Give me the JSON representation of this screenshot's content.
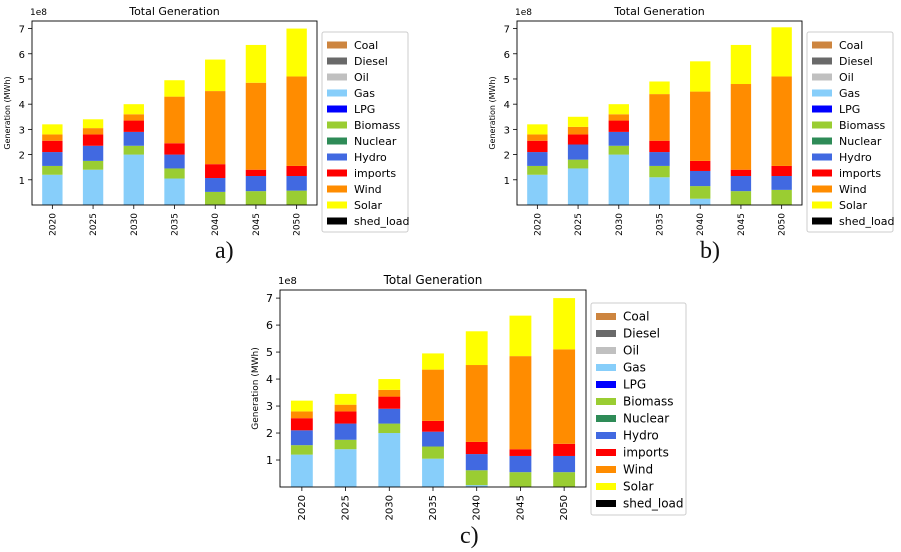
{
  "captions": [
    "a)",
    "b)",
    "c)"
  ],
  "legend": {
    "items": [
      {
        "label": "Coal",
        "color": "#cd853f"
      },
      {
        "label": "Diesel",
        "color": "#696969"
      },
      {
        "label": "Oil",
        "color": "#c0c0c0"
      },
      {
        "label": "Gas",
        "color": "#87cefa"
      },
      {
        "label": "LPG",
        "color": "#0000ff"
      },
      {
        "label": "Biomass",
        "color": "#9acd32"
      },
      {
        "label": "Nuclear",
        "color": "#2e8b57"
      },
      {
        "label": "Hydro",
        "color": "#4169e1"
      },
      {
        "label": "imports",
        "color": "#ff0000"
      },
      {
        "label": "Wind",
        "color": "#ff8c00"
      },
      {
        "label": "Solar",
        "color": "#ffff00"
      },
      {
        "label": "shed_load",
        "color": "#000000"
      }
    ]
  },
  "chart_data": [
    {
      "type": "bar",
      "stacked": true,
      "title": "Total Generation",
      "ylabel": "Generation (MWh)",
      "scale_label": "1e8",
      "categories": [
        "2020",
        "2025",
        "2030",
        "2035",
        "2040",
        "2045",
        "2050"
      ],
      "ylim": [
        0,
        7.3
      ],
      "yticks": [
        1,
        2,
        3,
        4,
        5,
        6,
        7
      ],
      "legend_position": "right",
      "series": [
        {
          "name": "Coal",
          "values": [
            0,
            0,
            0,
            0,
            0,
            0,
            0
          ]
        },
        {
          "name": "Diesel",
          "values": [
            0,
            0,
            0,
            0,
            0,
            0,
            0
          ]
        },
        {
          "name": "Oil",
          "values": [
            0,
            0,
            0,
            0,
            0,
            0,
            0
          ]
        },
        {
          "name": "Gas",
          "values": [
            1.2,
            1.4,
            2.0,
            1.05,
            0.02,
            0.0,
            0.0
          ]
        },
        {
          "name": "LPG",
          "values": [
            0,
            0,
            0,
            0,
            0,
            0,
            0
          ]
        },
        {
          "name": "Biomass",
          "values": [
            0.35,
            0.35,
            0.35,
            0.4,
            0.5,
            0.55,
            0.57
          ]
        },
        {
          "name": "Nuclear",
          "values": [
            0,
            0,
            0,
            0,
            0,
            0,
            0
          ]
        },
        {
          "name": "Hydro",
          "values": [
            0.55,
            0.6,
            0.55,
            0.55,
            0.55,
            0.6,
            0.58
          ]
        },
        {
          "name": "imports",
          "values": [
            0.45,
            0.45,
            0.45,
            0.45,
            0.55,
            0.25,
            0.4
          ]
        },
        {
          "name": "Wind",
          "values": [
            0.25,
            0.25,
            0.25,
            1.85,
            2.9,
            3.45,
            3.55
          ]
        },
        {
          "name": "Solar",
          "values": [
            0.4,
            0.35,
            0.4,
            0.65,
            1.25,
            1.5,
            1.9
          ]
        },
        {
          "name": "shed_load",
          "values": [
            0,
            0,
            0,
            0,
            0,
            0,
            0
          ]
        }
      ]
    },
    {
      "type": "bar",
      "stacked": true,
      "title": "Total Generation",
      "ylabel": "Generation (MWh)",
      "scale_label": "1e8",
      "categories": [
        "2020",
        "2025",
        "2030",
        "2035",
        "2040",
        "2045",
        "2050"
      ],
      "ylim": [
        0,
        7.3
      ],
      "yticks": [
        1,
        2,
        3,
        4,
        5,
        6,
        7
      ],
      "legend_position": "right",
      "series": [
        {
          "name": "Coal",
          "values": [
            0,
            0,
            0,
            0,
            0,
            0,
            0
          ]
        },
        {
          "name": "Diesel",
          "values": [
            0,
            0,
            0,
            0,
            0,
            0,
            0
          ]
        },
        {
          "name": "Oil",
          "values": [
            0,
            0,
            0,
            0,
            0,
            0,
            0
          ]
        },
        {
          "name": "Gas",
          "values": [
            1.2,
            1.45,
            2.0,
            1.1,
            0.25,
            0.0,
            0.0
          ]
        },
        {
          "name": "LPG",
          "values": [
            0,
            0,
            0,
            0,
            0,
            0,
            0
          ]
        },
        {
          "name": "Biomass",
          "values": [
            0.35,
            0.35,
            0.35,
            0.45,
            0.5,
            0.55,
            0.6
          ]
        },
        {
          "name": "Nuclear",
          "values": [
            0,
            0,
            0,
            0,
            0,
            0,
            0
          ]
        },
        {
          "name": "Hydro",
          "values": [
            0.55,
            0.6,
            0.55,
            0.55,
            0.6,
            0.6,
            0.55
          ]
        },
        {
          "name": "imports",
          "values": [
            0.45,
            0.4,
            0.45,
            0.45,
            0.4,
            0.25,
            0.4
          ]
        },
        {
          "name": "Wind",
          "values": [
            0.25,
            0.3,
            0.25,
            1.85,
            2.75,
            3.4,
            3.55
          ]
        },
        {
          "name": "Solar",
          "values": [
            0.4,
            0.4,
            0.4,
            0.5,
            1.2,
            1.55,
            1.95
          ]
        },
        {
          "name": "shed_load",
          "values": [
            0,
            0,
            0,
            0,
            0,
            0,
            0
          ]
        }
      ]
    },
    {
      "type": "bar",
      "stacked": true,
      "title": "Total Generation",
      "ylabel": "Generation (MWh)",
      "scale_label": "1e8",
      "categories": [
        "2020",
        "2025",
        "2030",
        "2035",
        "2040",
        "2045",
        "2050"
      ],
      "ylim": [
        0,
        7.3
      ],
      "yticks": [
        1,
        2,
        3,
        4,
        5,
        6,
        7
      ],
      "legend_position": "right",
      "series": [
        {
          "name": "Coal",
          "values": [
            0,
            0,
            0,
            0,
            0,
            0,
            0
          ]
        },
        {
          "name": "Diesel",
          "values": [
            0,
            0,
            0,
            0,
            0,
            0,
            0
          ]
        },
        {
          "name": "Oil",
          "values": [
            0,
            0,
            0,
            0,
            0.02,
            0,
            0
          ]
        },
        {
          "name": "Gas",
          "values": [
            1.2,
            1.4,
            2.0,
            1.05,
            0.05,
            0.0,
            0.0
          ]
        },
        {
          "name": "LPG",
          "values": [
            0,
            0,
            0,
            0,
            0,
            0,
            0
          ]
        },
        {
          "name": "Biomass",
          "values": [
            0.35,
            0.35,
            0.35,
            0.45,
            0.55,
            0.55,
            0.55
          ]
        },
        {
          "name": "Nuclear",
          "values": [
            0,
            0,
            0,
            0,
            0,
            0,
            0
          ]
        },
        {
          "name": "Hydro",
          "values": [
            0.55,
            0.6,
            0.55,
            0.55,
            0.6,
            0.6,
            0.6
          ]
        },
        {
          "name": "imports",
          "values": [
            0.45,
            0.45,
            0.45,
            0.4,
            0.45,
            0.25,
            0.45
          ]
        },
        {
          "name": "Wind",
          "values": [
            0.25,
            0.25,
            0.25,
            1.9,
            2.85,
            3.45,
            3.5
          ]
        },
        {
          "name": "Solar",
          "values": [
            0.4,
            0.4,
            0.4,
            0.6,
            1.25,
            1.5,
            1.9
          ]
        },
        {
          "name": "shed_load",
          "values": [
            0,
            0,
            0,
            0,
            0,
            0,
            0
          ]
        }
      ]
    }
  ]
}
